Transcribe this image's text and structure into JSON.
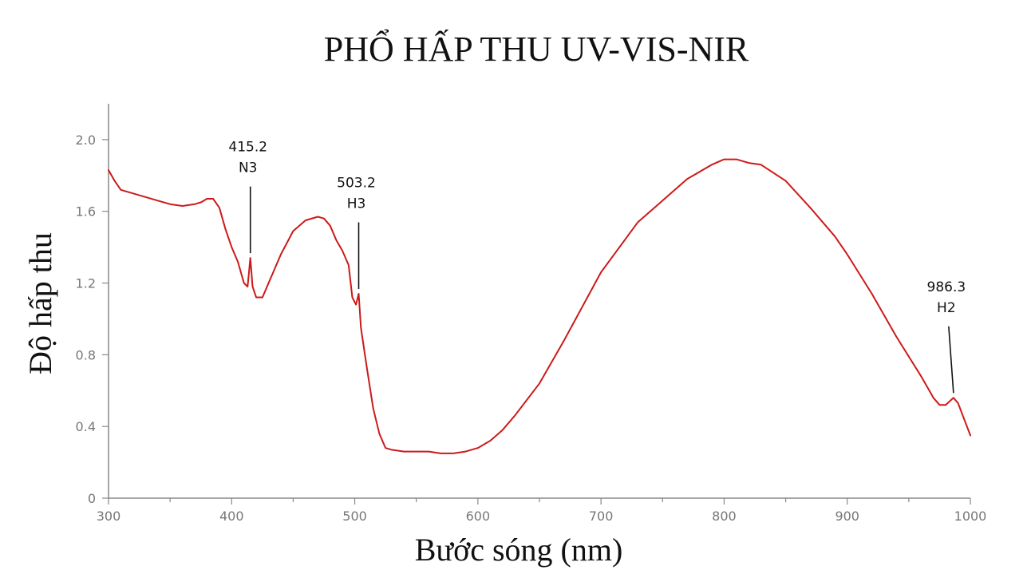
{
  "chart_data": {
    "type": "line",
    "title": "PHỔ HẤP THU UV-VIS-NIR",
    "xlabel": "Bước sóng (nm)",
    "ylabel": "Độ hấp thu",
    "xlim": [
      300,
      1000
    ],
    "ylim": [
      0,
      2.2
    ],
    "xticks": [
      300,
      400,
      500,
      600,
      700,
      800,
      900,
      1000
    ],
    "xtick_labels": [
      "300",
      "400",
      "500",
      "600",
      "700",
      "800",
      "900",
      "1000"
    ],
    "yticks": [
      0,
      0.4,
      0.8,
      1.2,
      1.6,
      2.0
    ],
    "ytick_labels": [
      "0",
      "0.4",
      "0.8",
      "1.2",
      "1.6",
      "2.0"
    ],
    "grid": false,
    "legend": "none",
    "series": [
      {
        "color": "#cc1a1a",
        "x": [
          300,
          305,
          310,
          320,
          330,
          340,
          350,
          360,
          370,
          375,
          380,
          385,
          390,
          395,
          400,
          405,
          410,
          413,
          415.2,
          417,
          420,
          425,
          430,
          440,
          450,
          460,
          470,
          475,
          480,
          485,
          490,
          495,
          498,
          501,
          503.2,
          505,
          510,
          515,
          520,
          525,
          530,
          540,
          550,
          560,
          570,
          580,
          590,
          600,
          610,
          620,
          630,
          650,
          670,
          700,
          730,
          750,
          770,
          790,
          800,
          810,
          820,
          830,
          850,
          870,
          890,
          900,
          920,
          940,
          960,
          970,
          975,
          980,
          986.3,
          990,
          995,
          1000
        ],
        "y": [
          1.83,
          1.77,
          1.72,
          1.7,
          1.68,
          1.66,
          1.64,
          1.63,
          1.64,
          1.65,
          1.67,
          1.67,
          1.62,
          1.5,
          1.4,
          1.32,
          1.2,
          1.18,
          1.34,
          1.18,
          1.12,
          1.12,
          1.2,
          1.36,
          1.49,
          1.55,
          1.57,
          1.56,
          1.52,
          1.44,
          1.38,
          1.3,
          1.12,
          1.08,
          1.14,
          0.95,
          0.72,
          0.5,
          0.36,
          0.28,
          0.27,
          0.26,
          0.26,
          0.26,
          0.25,
          0.25,
          0.26,
          0.28,
          0.32,
          0.38,
          0.46,
          0.64,
          0.88,
          1.26,
          1.54,
          1.66,
          1.78,
          1.86,
          1.89,
          1.89,
          1.87,
          1.86,
          1.77,
          1.62,
          1.46,
          1.36,
          1.14,
          0.9,
          0.68,
          0.56,
          0.52,
          0.52,
          0.56,
          0.53,
          0.44,
          0.35
        ]
      }
    ],
    "annotations": [
      {
        "x": 415.2,
        "y": 1.34,
        "value_label": "415.2",
        "band_label": "N3"
      },
      {
        "x": 503.2,
        "y": 1.14,
        "value_label": "503.2",
        "band_label": "H3"
      },
      {
        "x": 986.3,
        "y": 0.56,
        "value_label": "986.3",
        "band_label": "H2"
      }
    ]
  }
}
